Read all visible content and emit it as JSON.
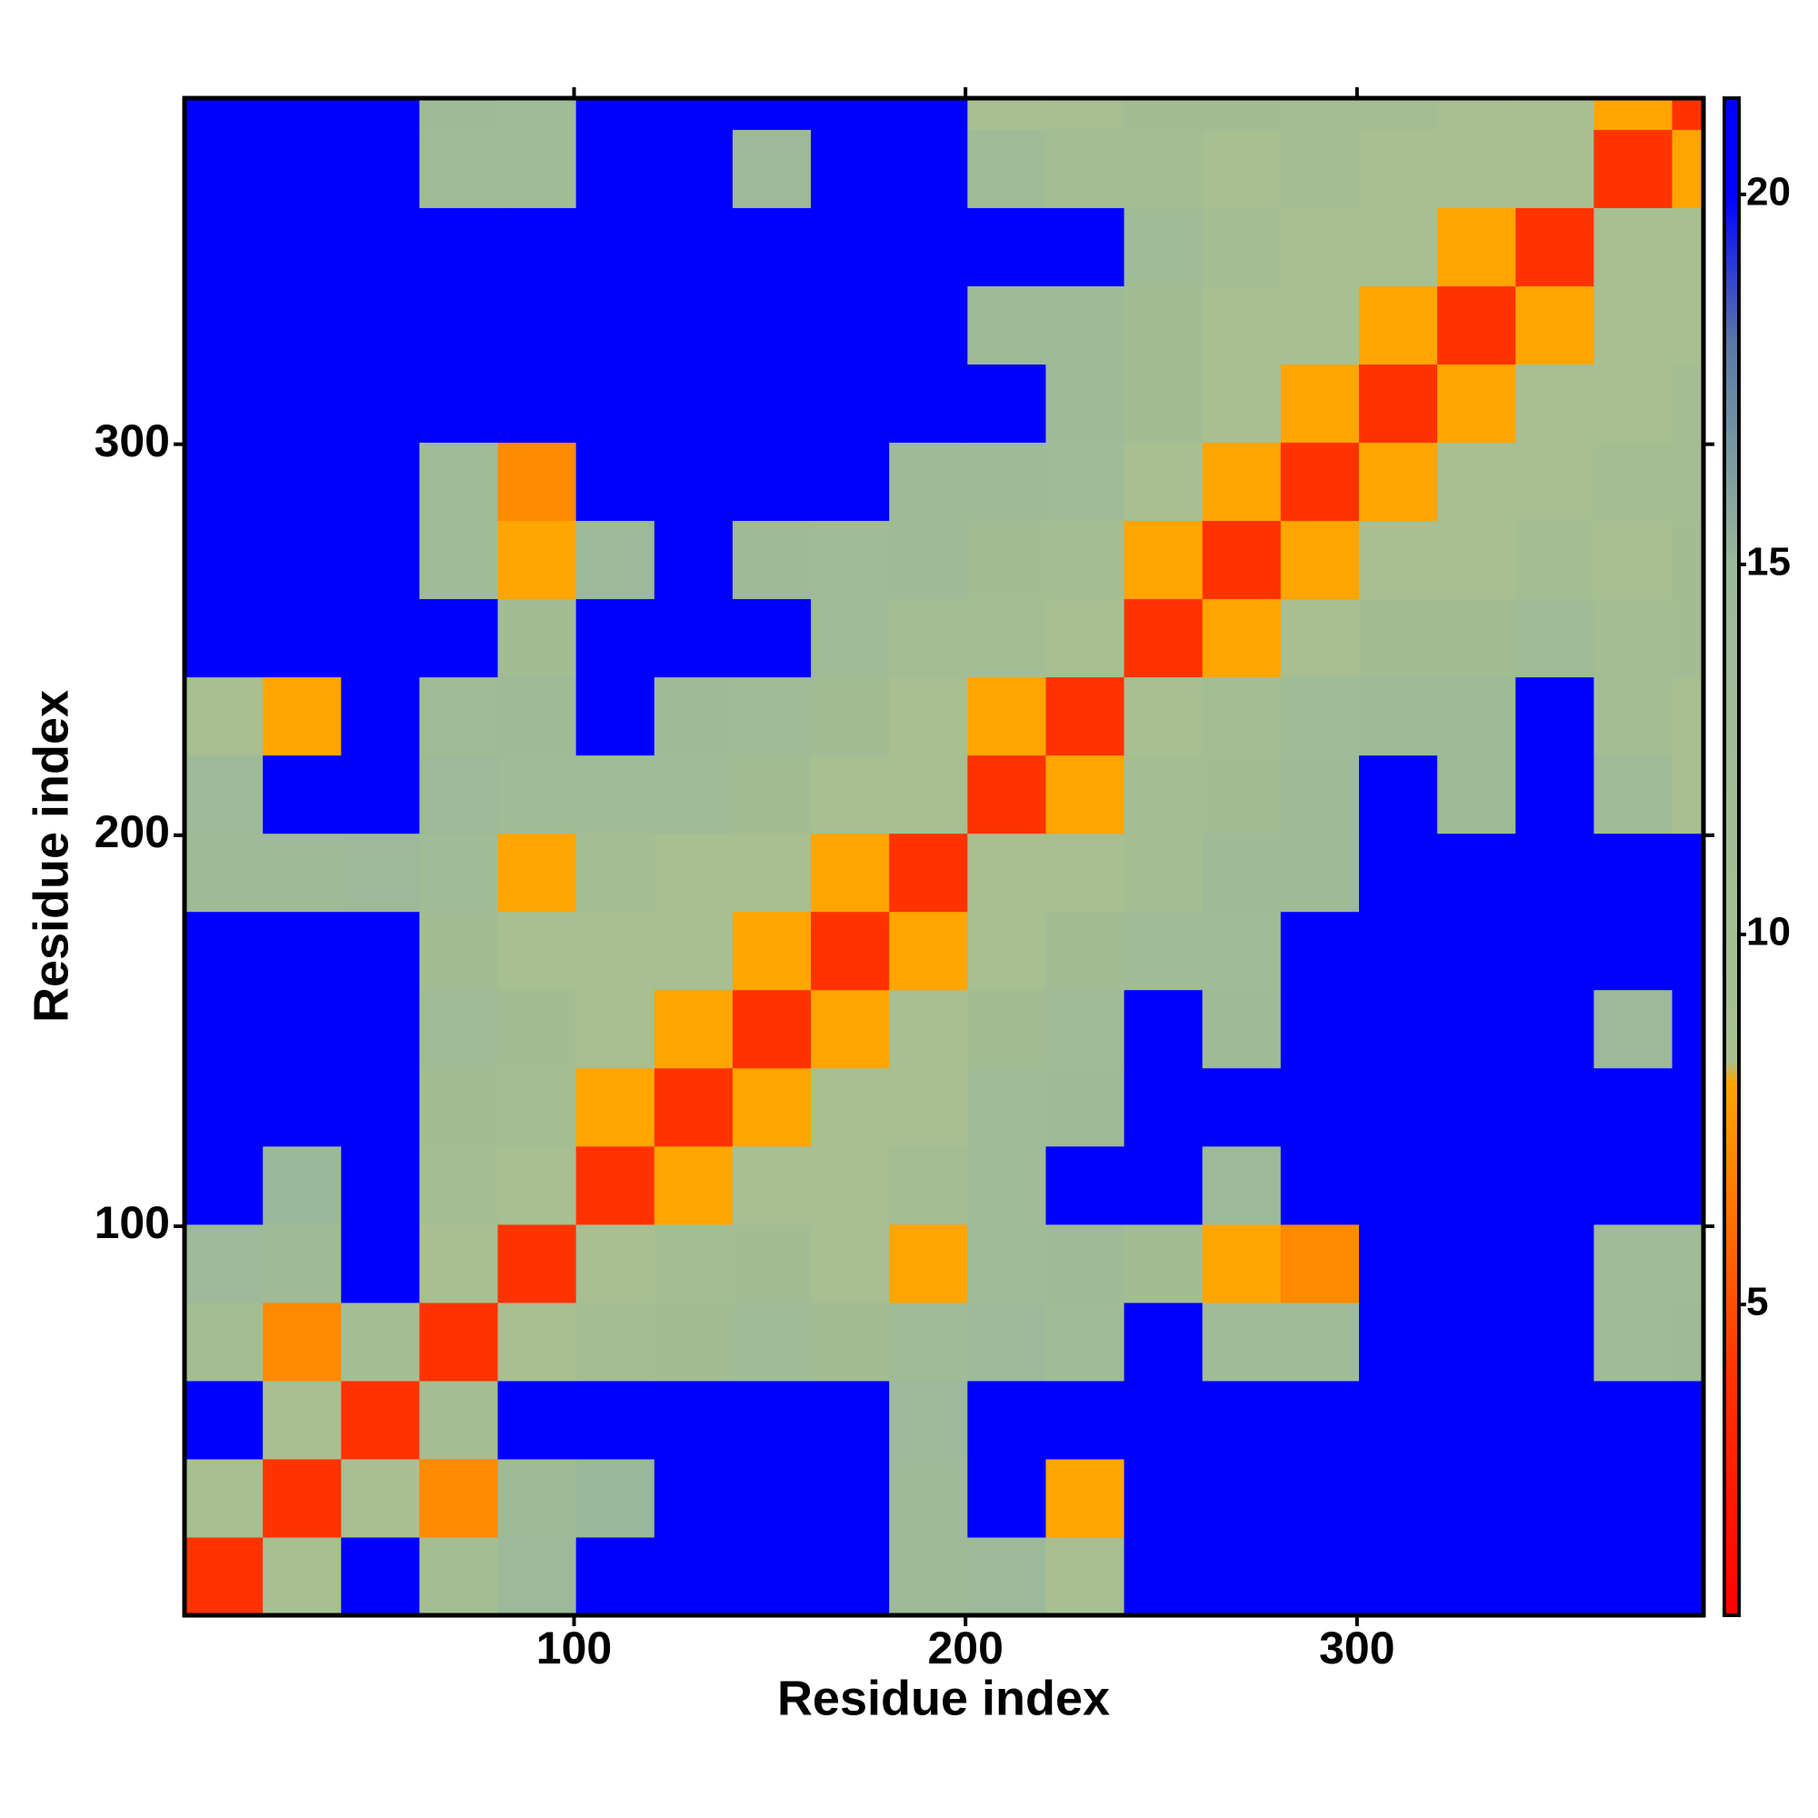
{
  "chart_data": {
    "type": "heatmap",
    "x_label": "Residue index",
    "y_label": "Residue index",
    "xlim": [
      0.5,
      388.5
    ],
    "ylim": [
      0.5,
      388.5
    ],
    "xticks": [
      100,
      200,
      300
    ],
    "yticks": [
      100,
      200,
      300
    ],
    "x_edges": [
      0.5,
      20.5,
      40.5,
      60.5,
      80.5,
      100.5,
      120.5,
      140.5,
      160.5,
      180.5,
      200.5,
      220.5,
      240.5,
      260.5,
      280.5,
      300.5,
      320.5,
      340.5,
      360.5,
      380.5,
      388.5
    ],
    "y_edges": [
      0.5,
      20.5,
      40.5,
      60.5,
      80.5,
      100.5,
      120.5,
      140.5,
      160.5,
      180.5,
      200.5,
      220.5,
      240.5,
      260.5,
      280.5,
      300.5,
      320.5,
      340.5,
      360.5,
      380.5,
      388.5
    ],
    "z": [
      [
        4,
        9,
        21,
        10,
        14,
        21,
        21,
        21,
        21,
        13,
        14,
        9,
        21,
        21,
        21,
        21,
        21,
        21,
        21,
        21
      ],
      [
        9,
        4,
        9,
        7,
        13,
        15,
        21,
        21,
        21,
        13,
        21,
        8,
        21,
        21,
        21,
        21,
        21,
        21,
        21,
        21
      ],
      [
        21,
        9,
        4,
        10,
        21,
        21,
        21,
        21,
        21,
        14,
        21,
        21,
        21,
        21,
        21,
        21,
        21,
        21,
        21,
        21
      ],
      [
        10,
        7,
        10,
        4,
        9,
        10,
        11,
        12,
        11,
        12,
        14,
        12,
        21,
        12,
        12,
        21,
        21,
        21,
        12,
        13
      ],
      [
        14,
        13,
        21,
        9,
        4,
        9,
        10,
        11,
        9,
        8,
        12,
        13,
        11,
        8,
        7,
        21,
        21,
        21,
        12,
        12
      ],
      [
        21,
        15,
        21,
        10,
        9,
        4,
        8,
        9,
        9,
        10,
        12,
        21,
        21,
        14,
        21,
        21,
        21,
        21,
        21,
        21
      ],
      [
        21,
        21,
        21,
        11,
        10,
        8,
        4,
        8,
        9,
        9,
        12,
        13,
        21,
        21,
        21,
        21,
        21,
        21,
        21,
        21
      ],
      [
        21,
        21,
        21,
        12,
        11,
        9,
        8,
        4,
        8,
        9,
        11,
        12,
        21,
        13,
        21,
        21,
        21,
        21,
        14,
        21
      ],
      [
        21,
        21,
        21,
        11,
        9,
        9,
        9,
        8,
        4,
        8,
        9,
        11,
        12,
        12,
        21,
        21,
        21,
        21,
        21,
        21
      ],
      [
        13,
        13,
        14,
        12,
        8,
        10,
        9,
        9,
        8,
        4,
        9,
        9,
        10,
        13,
        13,
        21,
        21,
        21,
        21,
        21
      ],
      [
        14,
        21,
        21,
        14,
        12,
        12,
        12,
        11,
        9,
        9,
        4,
        8,
        10,
        11,
        13,
        21,
        13,
        21,
        12,
        9
      ],
      [
        9,
        8,
        21,
        12,
        13,
        21,
        13,
        12,
        11,
        9,
        8,
        4,
        9,
        10,
        12,
        13,
        13,
        21,
        10,
        9
      ],
      [
        21,
        21,
        21,
        21,
        11,
        21,
        21,
        21,
        12,
        10,
        10,
        9,
        4,
        8,
        9,
        11,
        11,
        12,
        10,
        11
      ],
      [
        21,
        21,
        21,
        12,
        8,
        14,
        21,
        13,
        12,
        13,
        11,
        10,
        8,
        4,
        8,
        9,
        9,
        10,
        9,
        11
      ],
      [
        21,
        21,
        21,
        12,
        7,
        21,
        21,
        21,
        21,
        13,
        13,
        12,
        9,
        8,
        4,
        8,
        9,
        9,
        10,
        10
      ],
      [
        21,
        21,
        21,
        21,
        21,
        21,
        21,
        21,
        21,
        21,
        21,
        13,
        11,
        9,
        8,
        4,
        8,
        9,
        9,
        10
      ],
      [
        21,
        21,
        21,
        21,
        21,
        21,
        21,
        21,
        21,
        21,
        13,
        13,
        11,
        9,
        9,
        8,
        4,
        8,
        9,
        9
      ],
      [
        21,
        21,
        21,
        21,
        21,
        21,
        21,
        21,
        21,
        21,
        21,
        21,
        12,
        10,
        9,
        9,
        8,
        4,
        9,
        9
      ],
      [
        21,
        21,
        21,
        12,
        12,
        21,
        21,
        14,
        21,
        21,
        12,
        10,
        10,
        9,
        10,
        9,
        9,
        9,
        4,
        8
      ],
      [
        21,
        21,
        21,
        13,
        12,
        21,
        21,
        21,
        21,
        21,
        9,
        9,
        11,
        11,
        10,
        10,
        9,
        9,
        8,
        4
      ]
    ],
    "zlim": [
      0.8,
      21.3
    ],
    "zticks": [
      5,
      10,
      15,
      20
    ],
    "colorscale": [
      {
        "value": 0.8,
        "color": "#ff0000"
      },
      {
        "value": 4,
        "color": "#ff3300"
      },
      {
        "value": 8,
        "color": "#ffa500"
      },
      {
        "value": 8.3,
        "color": "#a8c090"
      },
      {
        "value": 15,
        "color": "#9ab89a"
      },
      {
        "value": 18,
        "color": "#5a78a8"
      },
      {
        "value": 20,
        "color": "#0000ff"
      },
      {
        "value": 21.3,
        "color": "#0000ff"
      }
    ]
  }
}
